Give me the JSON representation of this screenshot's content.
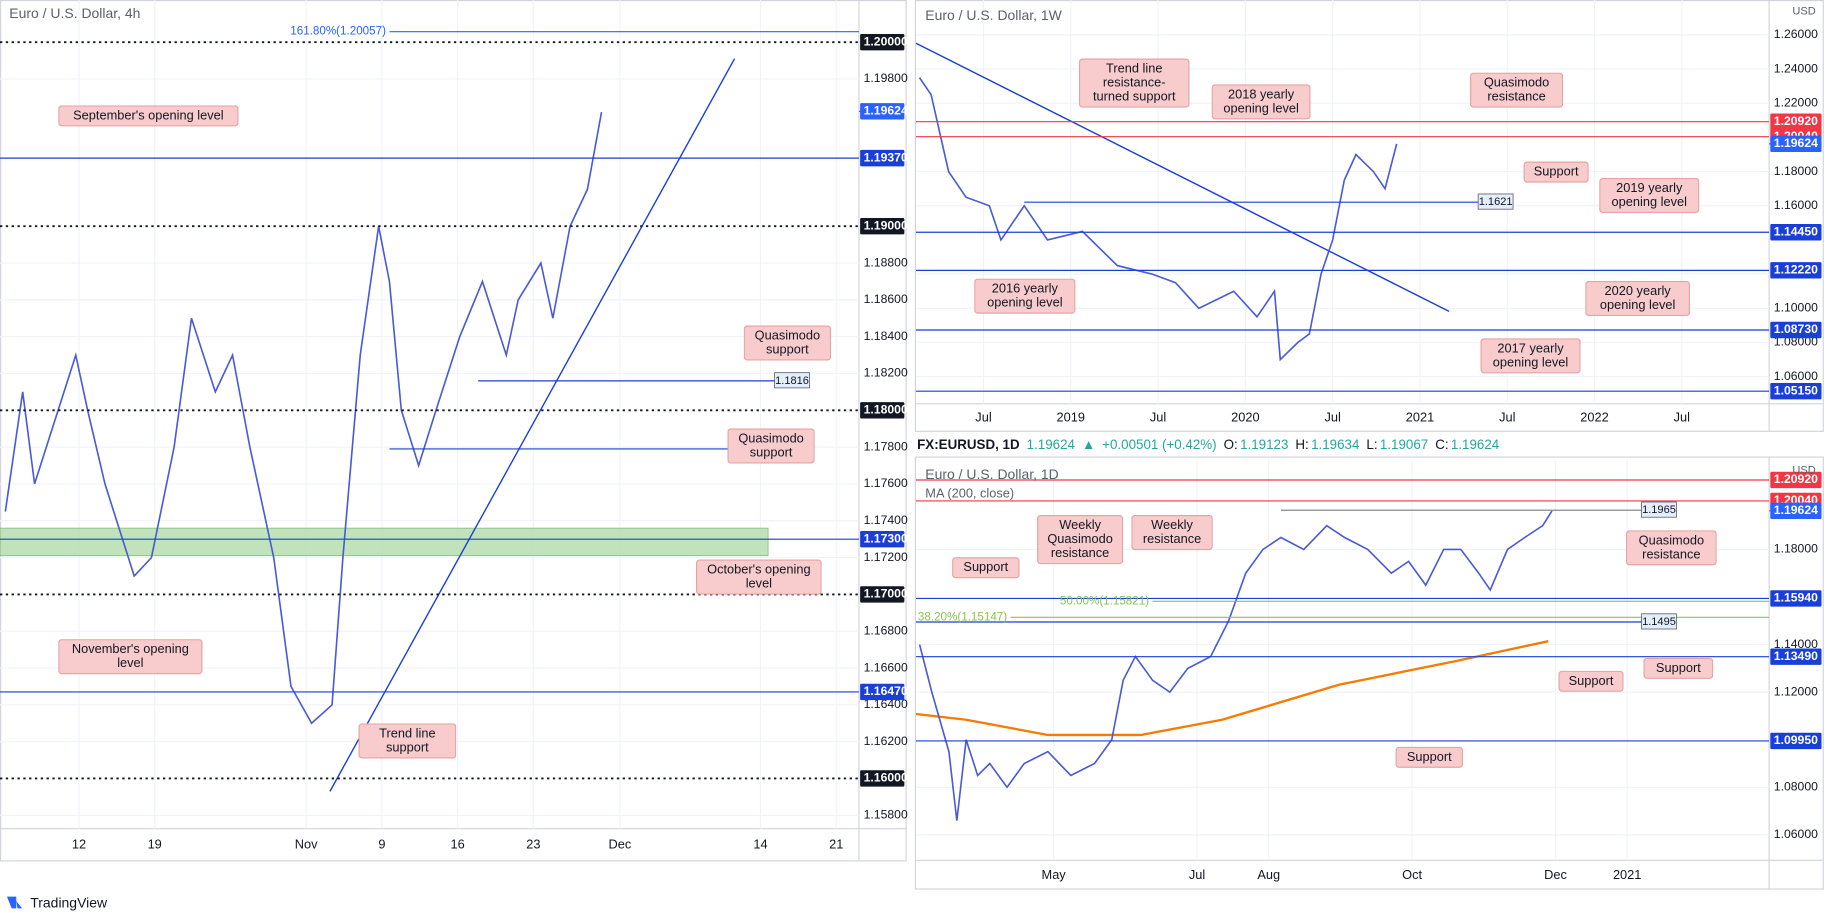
{
  "chart_data": [
    {
      "type": "line",
      "title": "Euro / U.S. Dollar, 4h",
      "color": "#4a5bd4",
      "grid": true,
      "x": [
        0.2,
        1.8,
        2.9,
        6.7,
        7.8,
        9.4,
        12.1,
        13.7,
        15.8,
        17.4,
        19.6,
        21.2,
        22.8,
        25,
        26.6,
        28.5,
        30.4,
        31.4,
        33,
        34.7,
        35.7,
        36.8,
        38.4,
        40,
        42.2,
        44.3,
        46.5,
        47.6,
        49.7,
        50.8,
        52.4,
        54,
        55.3
      ],
      "values": [
        1.1745,
        1.181,
        1.176,
        1.183,
        1.18,
        1.176,
        1.171,
        1.172,
        1.178,
        1.185,
        1.181,
        1.183,
        1.178,
        1.172,
        1.165,
        1.163,
        1.164,
        1.172,
        1.183,
        1.19,
        1.187,
        1.18,
        1.177,
        1.18,
        1.184,
        1.187,
        1.183,
        1.186,
        1.188,
        1.185,
        1.19,
        1.192,
        1.1962
      ],
      "xlim": [
        -0.3,
        79.1
      ],
      "ylim": [
        1.15727,
        1.20229
      ],
      "xticks": [
        {
          "value": 7,
          "label": "12"
        },
        {
          "value": 14,
          "label": "19"
        },
        {
          "value": 28,
          "label": "Nov"
        },
        {
          "value": 35,
          "label": "9"
        },
        {
          "value": 42,
          "label": "16"
        },
        {
          "value": 49,
          "label": "23"
        },
        {
          "value": 57,
          "label": "Dec"
        },
        {
          "value": 70,
          "label": "14"
        },
        {
          "value": 77,
          "label": "21"
        }
      ],
      "yticks": [
        {
          "value": 1.158,
          "label": "1.15800"
        },
        {
          "value": 1.162,
          "label": "1.16200"
        },
        {
          "value": 1.164,
          "label": "1.16400"
        },
        {
          "value": 1.166,
          "label": "1.16600"
        },
        {
          "value": 1.168,
          "label": "1.16800"
        },
        {
          "value": 1.172,
          "label": "1.17200"
        },
        {
          "value": 1.174,
          "label": "1.17400"
        },
        {
          "value": 1.176,
          "label": "1.17600"
        },
        {
          "value": 1.178,
          "label": "1.17800"
        },
        {
          "value": 1.182,
          "label": "1.18200"
        },
        {
          "value": 1.184,
          "label": "1.18400"
        },
        {
          "value": 1.186,
          "label": "1.18600"
        },
        {
          "value": 1.188,
          "label": "1.18800"
        },
        {
          "value": 1.198,
          "label": "1.19800"
        }
      ],
      "levels": [
        {
          "value": 1.20057,
          "label": "161.80%(1.20057)",
          "style": "fib",
          "color": "#2962ff",
          "x": [
            35.7,
            79.1
          ]
        },
        {
          "value": 1.2,
          "label": "1.20000",
          "style": "dotted",
          "color": "#131722"
        },
        {
          "value": 1.19624,
          "label": "1.19624",
          "style": "price",
          "color": "#2962ff"
        },
        {
          "value": 1.1937,
          "label": "1.19370",
          "style": "solid",
          "color": "#1a3fd6"
        },
        {
          "value": 1.19,
          "label": "1.19000",
          "style": "dotted",
          "color": "#131722"
        },
        {
          "value": 1.1816,
          "label": "1.1816",
          "style": "short",
          "color": "#1a3fd6",
          "x": [
            43.9,
            71.3
          ]
        },
        {
          "value": 1.18,
          "label": "1.18000",
          "style": "dotted",
          "color": "#131722"
        },
        {
          "value": 1.1779,
          "label": "1.1779",
          "style": "short",
          "color": "#1a3fd6",
          "x": [
            35.7,
            71.3
          ]
        },
        {
          "value": 1.173,
          "label": "1.17300",
          "style": "solid",
          "color": "#1a3fd6"
        },
        {
          "value": 1.17,
          "label": "1.17000",
          "style": "dotted",
          "color": "#131722"
        },
        {
          "value": 1.1647,
          "label": "1.16470",
          "style": "solid",
          "color": "#1a3fd6"
        },
        {
          "value": 1.16,
          "label": "1.16000",
          "style": "dotted",
          "color": "#131722"
        }
      ],
      "zone": {
        "values": [
          1.1721,
          1.1736
        ],
        "x": [
          -0.3,
          70.7
        ],
        "color": "#b7dfb0"
      },
      "trendline": {
        "x": [
          30.2,
          67.6
        ],
        "values": [
          1.1593,
          1.1991
        ],
        "color": "#1a3fd6"
      },
      "annotations": [
        "September's opening level",
        "Quasimodo support",
        "Quasimodo support",
        "October's opening level",
        "November's opening level",
        "Trend line support"
      ]
    },
    {
      "type": "line",
      "title": "Euro / U.S. Dollar, 1W",
      "currency": "USD",
      "color": "#4a5bd4",
      "grid": true,
      "x": [
        1.6,
        2.4,
        3.6,
        4.8,
        6.4,
        7.2,
        8.8,
        10.4,
        12.8,
        15.2,
        17.6,
        19.2,
        20.8,
        23.2,
        24.8,
        26,
        26.4,
        27.6,
        28.4,
        29.2,
        30,
        30.8,
        31.6,
        32.8,
        33.6,
        34.4
      ],
      "values": [
        1.235,
        1.225,
        1.18,
        1.165,
        1.16,
        1.14,
        1.16,
        1.14,
        1.145,
        1.125,
        1.12,
        1.115,
        1.1,
        1.11,
        1.095,
        1.11,
        1.07,
        1.08,
        1.085,
        1.12,
        1.14,
        1.175,
        1.19,
        1.18,
        1.17,
        1.1962
      ],
      "xlim": [
        1.36,
        60
      ],
      "ylim": [
        1.0441,
        1.2804
      ],
      "xticks": [
        {
          "value": 6,
          "label": "Jul"
        },
        {
          "value": 12,
          "label": "2019"
        },
        {
          "value": 18,
          "label": "Jul"
        },
        {
          "value": 24,
          "label": "2020"
        },
        {
          "value": 30,
          "label": "Jul"
        },
        {
          "value": 36,
          "label": "2021"
        },
        {
          "value": 42,
          "label": "Jul"
        },
        {
          "value": 48,
          "label": "2022"
        },
        {
          "value": 54,
          "label": "Jul"
        }
      ],
      "yticks": [
        {
          "value": 1.06,
          "label": "1.06000"
        },
        {
          "value": 1.08,
          "label": "1.08000"
        },
        {
          "value": 1.1,
          "label": "1.10000"
        },
        {
          "value": 1.12,
          "label": "1.12000"
        },
        {
          "value": 1.16,
          "label": "1.16000"
        },
        {
          "value": 1.18,
          "label": "1.18000"
        },
        {
          "value": 1.22,
          "label": "1.22000"
        },
        {
          "value": 1.24,
          "label": "1.24000"
        },
        {
          "value": 1.26,
          "label": "1.26000"
        }
      ],
      "levels": [
        {
          "value": 1.2092,
          "label": "1.20920",
          "style": "solid",
          "color": "#f23645"
        },
        {
          "value": 1.2004,
          "label": "1.20040",
          "style": "solid",
          "color": "#f23645"
        },
        {
          "value": 1.19624,
          "label": "1.19624",
          "style": "price",
          "color": "#2962ff"
        },
        {
          "value": 1.1621,
          "label": "1.1621",
          "style": "short",
          "color": "#1a3fd6",
          "x": [
            8.8,
            40
          ]
        },
        {
          "value": 1.1445,
          "label": "1.14450",
          "style": "solid",
          "color": "#1a3fd6"
        },
        {
          "value": 1.1222,
          "label": "1.12220",
          "style": "solid",
          "color": "#1a3fd6"
        },
        {
          "value": 1.0873,
          "label": "1.08730",
          "style": "solid",
          "color": "#1a3fd6"
        },
        {
          "value": 1.0515,
          "label": "1.05150",
          "style": "solid",
          "color": "#1a3fd6"
        }
      ],
      "trendline": {
        "x": [
          1.36,
          38
        ],
        "values": [
          1.2551,
          1.0982
        ],
        "color": "#1a3fd6"
      },
      "annotations": [
        "Trend line resistance-turned support",
        "2018 yearly opening level",
        "Quasimodo resistance",
        "Support",
        "2019 yearly opening level",
        "2016 yearly opening level",
        "2020 yearly opening level",
        "2017 yearly opening level"
      ]
    },
    {
      "type": "line",
      "title": "Euro / U.S. Dollar, 1D",
      "currency": "USD",
      "color": "#4a5bd4",
      "grid": true,
      "quote": [
        "FX:EURUSD, 1D",
        "1.19624",
        "▲",
        "+0.00501 (+0.42%)",
        "O:",
        "1.19123",
        "H:",
        "1.19634",
        "L:",
        "1.19067",
        "C:",
        "1.19624"
      ],
      "x": [
        2.13,
        2.3,
        2.54,
        2.65,
        2.78,
        2.94,
        3.11,
        3.35,
        3.59,
        3.92,
        4.24,
        4.57,
        4.81,
        4.97,
        5.14,
        5.38,
        5.62,
        5.87,
        6.19,
        6.44,
        6.68,
        6.92,
        7.17,
        7.49,
        7.81,
        8.06,
        8.38,
        8.71,
        8.95,
        9.19,
        9.44,
        9.68,
        9.93,
        10.09,
        10.33,
        10.57,
        10.82,
        10.95
      ],
      "values": [
        1.14,
        1.12,
        1.095,
        1.066,
        1.1,
        1.085,
        1.09,
        1.08,
        1.09,
        1.095,
        1.085,
        1.09,
        1.1,
        1.125,
        1.135,
        1.125,
        1.12,
        1.13,
        1.135,
        1.15,
        1.17,
        1.18,
        1.185,
        1.18,
        1.19,
        1.185,
        1.18,
        1.17,
        1.175,
        1.165,
        1.18,
        1.18,
        1.17,
        1.163,
        1.18,
        1.185,
        1.19,
        1.1962
      ],
      "ma": {
        "name": "MA (200, close)",
        "color": "#f57c00",
        "x": [
          2.08,
          2.78,
          3.92,
          5.22,
          6.35,
          7.98,
          9.6,
          10.9
        ],
        "values": [
          1.1108,
          1.1084,
          1.102,
          1.102,
          1.1084,
          1.1231,
          1.133,
          1.1414
        ]
      },
      "xlim": [
        2.08,
        13.98
      ],
      "ylim": [
        1.0493,
        1.2176
      ],
      "xticks": [
        {
          "value": 4,
          "label": "May"
        },
        {
          "value": 6,
          "label": "Jul"
        },
        {
          "value": 7,
          "label": "Aug"
        },
        {
          "value": 9,
          "label": "Oct"
        },
        {
          "value": 11,
          "label": "Dec"
        },
        {
          "value": 12,
          "label": "2021"
        }
      ],
      "yticks": [
        {
          "value": 1.06,
          "label": "1.06000"
        },
        {
          "value": 1.08,
          "label": "1.08000"
        },
        {
          "value": 1.12,
          "label": "1.12000"
        },
        {
          "value": 1.14,
          "label": "1.14000"
        },
        {
          "value": 1.18,
          "label": "1.18000"
        }
      ],
      "levels": [
        {
          "value": 1.2092,
          "label": "1.20920",
          "style": "solid",
          "color": "#f23645"
        },
        {
          "value": 1.2004,
          "label": "1.20040",
          "style": "solid",
          "color": "#f23645"
        },
        {
          "value": 1.19624,
          "label": "1.19624",
          "style": "price",
          "color": "#2962ff"
        },
        {
          "value": 1.1965,
          "label": "1.1965",
          "style": "short",
          "color": "#787b86",
          "x": [
            7.17,
            12.2
          ]
        },
        {
          "value": 1.1594,
          "label": "1.15940",
          "style": "solid",
          "color": "#1a3fd6"
        },
        {
          "value": 1.15821,
          "label": "50.00%(1.15821)",
          "style": "fib",
          "color": "#8bc34a",
          "x": [
            5.38,
            13.98
          ]
        },
        {
          "value": 1.15147,
          "label": "38.20%(1.15147)",
          "style": "fib",
          "color": "#8bc34a",
          "x": [
            3.4,
            13.98
          ]
        },
        {
          "value": 1.1495,
          "label": "1.1495",
          "style": "short",
          "color": "#1a3fd6",
          "x": [
            2.08,
            12.2
          ]
        },
        {
          "value": 1.1349,
          "label": "1.13490",
          "style": "solid",
          "color": "#1a3fd6"
        },
        {
          "value": 1.0995,
          "label": "1.09950",
          "style": "solid",
          "color": "#1a3fd6"
        }
      ],
      "annotations": [
        "Weekly Quasimodo resistance",
        "Weekly resistance",
        "Support",
        "Quasimodo resistance",
        "Support",
        "Support",
        "Support"
      ]
    }
  ],
  "footer": "TradingView"
}
